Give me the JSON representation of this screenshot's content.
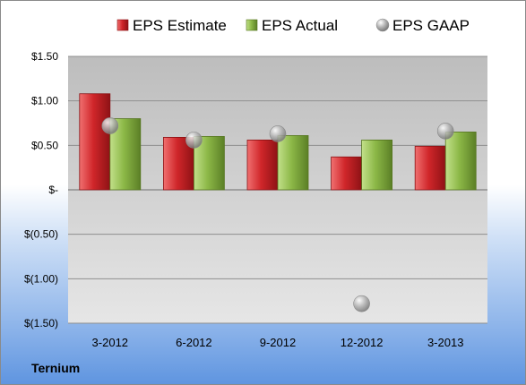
{
  "company": "Ternium",
  "chart_data": {
    "type": "bar",
    "title": "",
    "xlabel": "",
    "ylabel": "",
    "categories": [
      "3-2012",
      "6-2012",
      "9-2012",
      "12-2012",
      "3-2013"
    ],
    "series": [
      {
        "name": "EPS Estimate",
        "kind": "bar",
        "color": "#d0262a",
        "values": [
          1.08,
          0.59,
          0.56,
          0.37,
          0.49
        ]
      },
      {
        "name": "EPS Actual",
        "kind": "bar",
        "color": "#8cb847",
        "values": [
          0.8,
          0.6,
          0.61,
          0.56,
          0.65
        ]
      },
      {
        "name": "EPS GAAP",
        "kind": "scatter",
        "color": "#a8a8a8",
        "values": [
          0.72,
          0.56,
          0.63,
          -1.28,
          0.66
        ]
      }
    ],
    "ylim": [
      -1.5,
      1.5
    ],
    "yticks": [
      1.5,
      1.0,
      0.5,
      0,
      -0.5,
      -1.0,
      -1.5
    ],
    "ytick_labels": [
      "$1.50",
      "$1.00",
      "$0.50",
      "$-",
      "$(0.50)",
      "$(1.00)",
      "$(1.50)"
    ],
    "grid": true,
    "legend_position": "top"
  }
}
